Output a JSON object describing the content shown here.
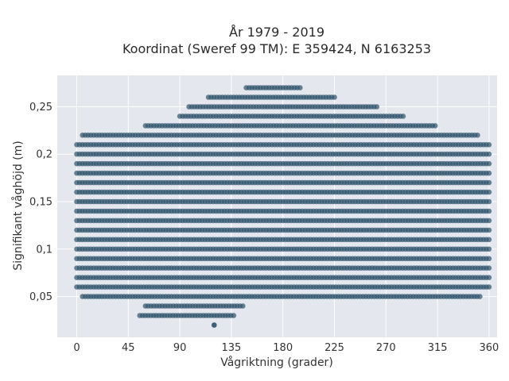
{
  "chart_data": {
    "type": "scatter",
    "title_line1": "År 1979 - 2019",
    "title_line2": "Koordinat (Sweref 99 TM): E 359424, N 6163253",
    "xlabel": "Vågriktning (grader)",
    "ylabel": "Signifikant våghöjd (m)",
    "xlim": [
      -17,
      367
    ],
    "ylim": [
      0.007,
      0.283
    ],
    "x_ticks": [
      0,
      45,
      90,
      135,
      180,
      225,
      270,
      315,
      360
    ],
    "x_tick_labels": [
      "0",
      "45",
      "90",
      "135",
      "180",
      "225",
      "270",
      "315",
      "360"
    ],
    "y_ticks": [
      0.05,
      0.1,
      0.15,
      0.2,
      0.25
    ],
    "y_tick_labels": [
      "0,05",
      "0,1",
      "0,15",
      "0,2",
      "0,25"
    ],
    "grid": true,
    "marker_color": "#2e526b",
    "marker_opacity": 0.7,
    "plot_background": "#e5e7ef",
    "bands": [
      {
        "y": 0.02,
        "x_min": 120,
        "x_max": 120
      },
      {
        "y": 0.03,
        "x_min": 55,
        "x_max": 137
      },
      {
        "y": 0.04,
        "x_min": 60,
        "x_max": 145
      },
      {
        "y": 0.05,
        "x_min": 5,
        "x_max": 352
      },
      {
        "y": 0.06,
        "x_min": 0,
        "x_max": 360
      },
      {
        "y": 0.07,
        "x_min": 0,
        "x_max": 360
      },
      {
        "y": 0.08,
        "x_min": 0,
        "x_max": 360
      },
      {
        "y": 0.09,
        "x_min": 0,
        "x_max": 360
      },
      {
        "y": 0.1,
        "x_min": 0,
        "x_max": 360
      },
      {
        "y": 0.11,
        "x_min": 0,
        "x_max": 360
      },
      {
        "y": 0.12,
        "x_min": 0,
        "x_max": 360
      },
      {
        "y": 0.13,
        "x_min": 0,
        "x_max": 360
      },
      {
        "y": 0.14,
        "x_min": 0,
        "x_max": 360
      },
      {
        "y": 0.15,
        "x_min": 0,
        "x_max": 360
      },
      {
        "y": 0.16,
        "x_min": 0,
        "x_max": 360
      },
      {
        "y": 0.17,
        "x_min": 0,
        "x_max": 360
      },
      {
        "y": 0.18,
        "x_min": 0,
        "x_max": 360
      },
      {
        "y": 0.19,
        "x_min": 0,
        "x_max": 360
      },
      {
        "y": 0.2,
        "x_min": 0,
        "x_max": 360
      },
      {
        "y": 0.21,
        "x_min": 0,
        "x_max": 360
      },
      {
        "y": 0.22,
        "x_min": 5,
        "x_max": 350
      },
      {
        "y": 0.23,
        "x_min": 60,
        "x_max": 313
      },
      {
        "y": 0.24,
        "x_min": 90,
        "x_max": 285
      },
      {
        "y": 0.25,
        "x_min": 98,
        "x_max": 262
      },
      {
        "y": 0.26,
        "x_min": 115,
        "x_max": 225
      },
      {
        "y": 0.27,
        "x_min": 148,
        "x_max": 195
      }
    ]
  }
}
